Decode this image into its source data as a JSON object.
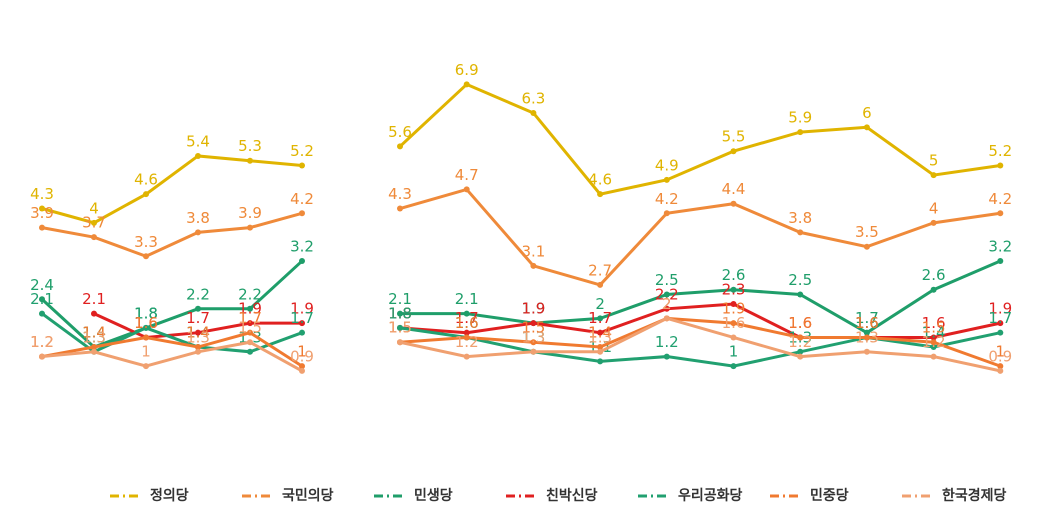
{
  "chart_data": {
    "type": "line",
    "categories": [
      null,
      null,
      null,
      null,
      null,
      null,
      null,
      null,
      null,
      null,
      null,
      null,
      null,
      null,
      null,
      null,
      null
    ],
    "ylim": [
      0.5,
      7.2
    ],
    "series": [
      {
        "name": "정의당",
        "color": "#e0b400",
        "values": [
          4.3,
          4.0,
          4.6,
          5.4,
          5.3,
          5.2,
          null,
          5.6,
          6.9,
          6.3,
          4.6,
          4.9,
          5.5,
          5.9,
          6.0,
          5.0,
          5.2
        ]
      },
      {
        "name": "국민의당",
        "color": "#ef8a3a",
        "values": [
          3.9,
          3.7,
          3.3,
          3.8,
          3.9,
          4.2,
          null,
          4.3,
          4.7,
          3.1,
          2.7,
          4.2,
          4.4,
          3.8,
          3.5,
          4.0,
          4.2
        ]
      },
      {
        "name": "민생당",
        "color": "#1f9e6a",
        "values": [
          2.4,
          1.4,
          1.8,
          2.2,
          2.2,
          3.2,
          null,
          2.1,
          2.1,
          1.9,
          2.0,
          2.5,
          2.6,
          2.5,
          1.7,
          2.6,
          3.2
        ]
      },
      {
        "name": "친박신당",
        "color": "#e02020",
        "values": [
          null,
          2.1,
          1.6,
          1.7,
          1.9,
          1.9,
          null,
          1.8,
          1.7,
          1.9,
          1.7,
          2.2,
          2.3,
          1.6,
          1.6,
          1.6,
          1.9
        ]
      },
      {
        "name": "우리공화당",
        "color": "#21a070",
        "values": [
          2.1,
          1.3,
          1.8,
          1.4,
          1.3,
          1.7,
          null,
          1.8,
          1.6,
          1.3,
          1.1,
          1.2,
          1.0,
          1.3,
          1.6,
          1.4,
          1.7
        ]
      },
      {
        "name": "민중당",
        "color": "#f07a30",
        "values": [
          1.2,
          1.4,
          1.6,
          1.4,
          1.7,
          1.0,
          null,
          1.5,
          1.6,
          1.5,
          1.4,
          2.0,
          1.9,
          1.6,
          1.6,
          1.5,
          1.0
        ]
      },
      {
        "name": "한국경제당",
        "color": "#f0a070",
        "values": [
          1.2,
          1.3,
          1.0,
          1.3,
          1.5,
          0.9,
          null,
          1.5,
          1.2,
          1.3,
          1.3,
          2.0,
          1.6,
          1.2,
          1.3,
          1.2,
          0.9
        ]
      }
    ]
  }
}
